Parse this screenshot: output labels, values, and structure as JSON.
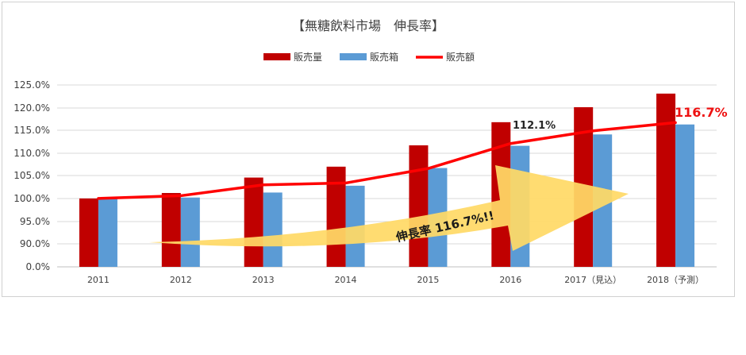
{
  "chart_data": {
    "type": "bar",
    "title": "【無糖飲料市場　伸長率】",
    "categories": [
      "2011",
      "2012",
      "2013",
      "2014",
      "2015",
      "2016",
      "2017（見込）",
      "2018（予測）"
    ],
    "yticks": [
      "125.0%",
      "120.0%",
      "115.0%",
      "110.0%",
      "105.0%",
      "100.0%",
      "95.0%",
      "90.0%",
      "0.0%"
    ],
    "series": [
      {
        "name": "販売量",
        "kind": "bar",
        "color": "#c00000",
        "values": [
          100.0,
          101.2,
          104.6,
          107.0,
          111.7,
          116.8,
          120.1,
          123.1
        ]
      },
      {
        "name": "販売箱",
        "kind": "bar",
        "color": "#5b9bd5",
        "values": [
          100.0,
          100.2,
          101.3,
          102.8,
          106.7,
          111.6,
          114.1,
          116.3
        ]
      },
      {
        "name": "販売額",
        "kind": "line",
        "color": "#ff0000",
        "values": [
          100.0,
          100.6,
          103.0,
          103.4,
          106.6,
          112.1,
          114.9,
          116.7
        ]
      }
    ],
    "annotations": {
      "label_2016": "112.1%",
      "label_2018": "116.7%",
      "arrow_text": "伸長率 116.7%!!"
    },
    "legend_position": "top-center",
    "grid": true
  }
}
